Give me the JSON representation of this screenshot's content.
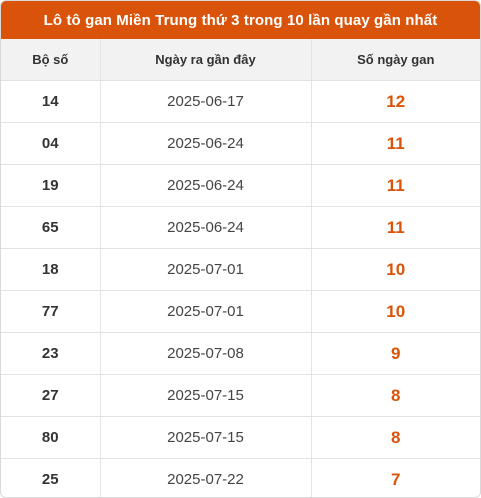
{
  "title": "Lô tô gan Miền Trung thứ 3 trong 10 lần quay gần nhất",
  "accent_color": "#d9540a",
  "columns": [
    "Bộ số",
    "Ngày ra gần đây",
    "Số ngày gan"
  ],
  "rows": [
    {
      "number": "14",
      "date": "2025-06-17",
      "days": "12"
    },
    {
      "number": "04",
      "date": "2025-06-24",
      "days": "11"
    },
    {
      "number": "19",
      "date": "2025-06-24",
      "days": "11"
    },
    {
      "number": "65",
      "date": "2025-06-24",
      "days": "11"
    },
    {
      "number": "18",
      "date": "2025-07-01",
      "days": "10"
    },
    {
      "number": "77",
      "date": "2025-07-01",
      "days": "10"
    },
    {
      "number": "23",
      "date": "2025-07-08",
      "days": "9"
    },
    {
      "number": "27",
      "date": "2025-07-15",
      "days": "8"
    },
    {
      "number": "80",
      "date": "2025-07-15",
      "days": "8"
    },
    {
      "number": "25",
      "date": "2025-07-22",
      "days": "7"
    }
  ]
}
